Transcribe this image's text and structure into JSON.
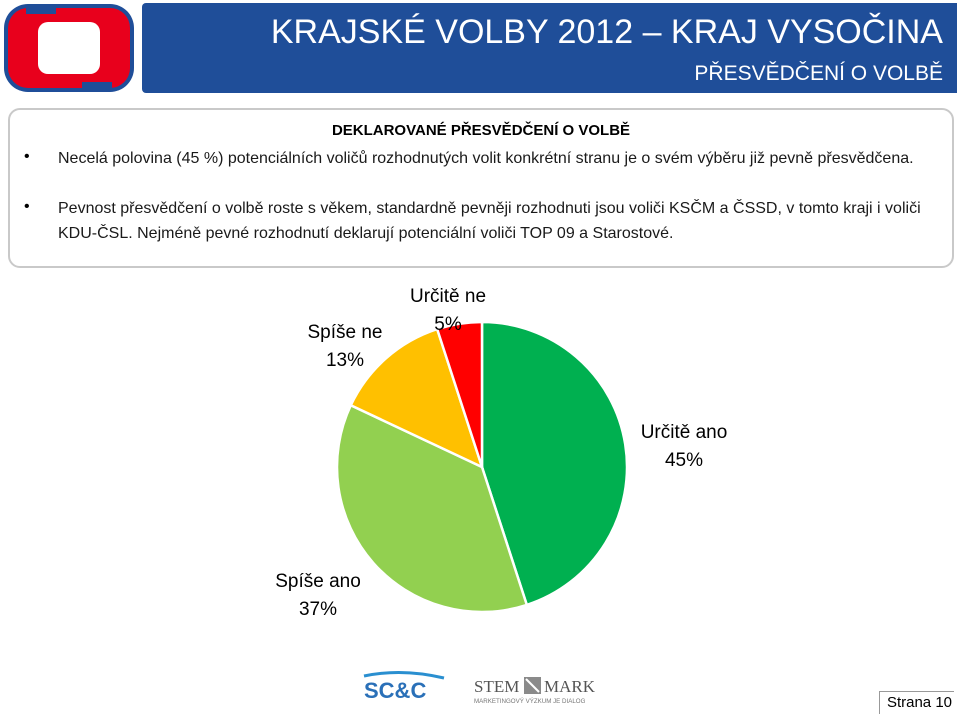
{
  "header": {
    "title": "KRAJSKÉ VOLBY 2012 – KRAJ VYSOČINA",
    "subtitle": "PŘESVĚDČENÍ O VOLBĚ"
  },
  "summary": {
    "heading": "DEKLAROVANÉ PŘESVĚDČENÍ O VOLBĚ",
    "bullets": [
      "Necelá polovina (45 %) potenciálních voličů rozhodnutých volit konkrétní stranu je o svém výběru již pevně přesvědčena.",
      "Pevnost přesvědčení o volbě roste s věkem, standardně pevněji rozhodnuti jsou voliči KSČM a ČSSD, v tomto kraji i voliči KDU-ČSL. Nejméně pevné rozhodnutí deklarují potenciální voliči TOP 09 a Starostové."
    ]
  },
  "chart_data": {
    "type": "pie",
    "slices": [
      {
        "name": "Určitě ano",
        "value": 45,
        "label": "45%",
        "color": "#00b050"
      },
      {
        "name": "Spíše ano",
        "value": 37,
        "label": "37%",
        "color": "#92d050"
      },
      {
        "name": "Spíše ne",
        "value": 13,
        "label": "13%",
        "color": "#ffc000"
      },
      {
        "name": "Určitě ne",
        "value": 5,
        "label": "5%",
        "color": "#ff0000"
      }
    ]
  },
  "footer": {
    "logo1": "SC&C",
    "logo2_part1": "STEM",
    "logo2_part2": "MARK",
    "logo2_tagline": "MARKETINGOVÝ VÝZKUM JE DIALOG",
    "page": "Strana 10"
  }
}
